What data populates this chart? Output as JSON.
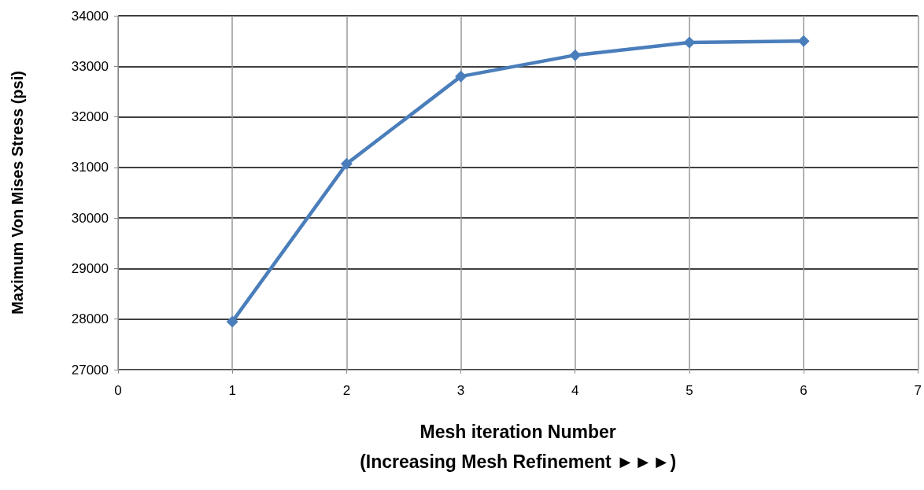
{
  "chart_data": {
    "type": "line",
    "xlabel": "Mesh iteration Number\n(Increasing Mesh Refinement ►►►)",
    "ylabel": "Maximum Von Mises Stress (psi)",
    "x": [
      1,
      2,
      3,
      4,
      5,
      6
    ],
    "series": [
      {
        "color": "#4a7ebb",
        "values": [
          27950,
          31070,
          32800,
          33220,
          33470,
          33500
        ]
      }
    ],
    "xlim": [
      0,
      7
    ],
    "xticks": [
      0,
      1,
      2,
      3,
      4,
      5,
      6,
      7
    ],
    "ylim": [
      27000,
      34000
    ],
    "yticks": [
      27000,
      28000,
      29000,
      30000,
      31000,
      32000,
      33000,
      34000
    ],
    "grid": true,
    "marker": "diamond",
    "line_style": "solid"
  }
}
